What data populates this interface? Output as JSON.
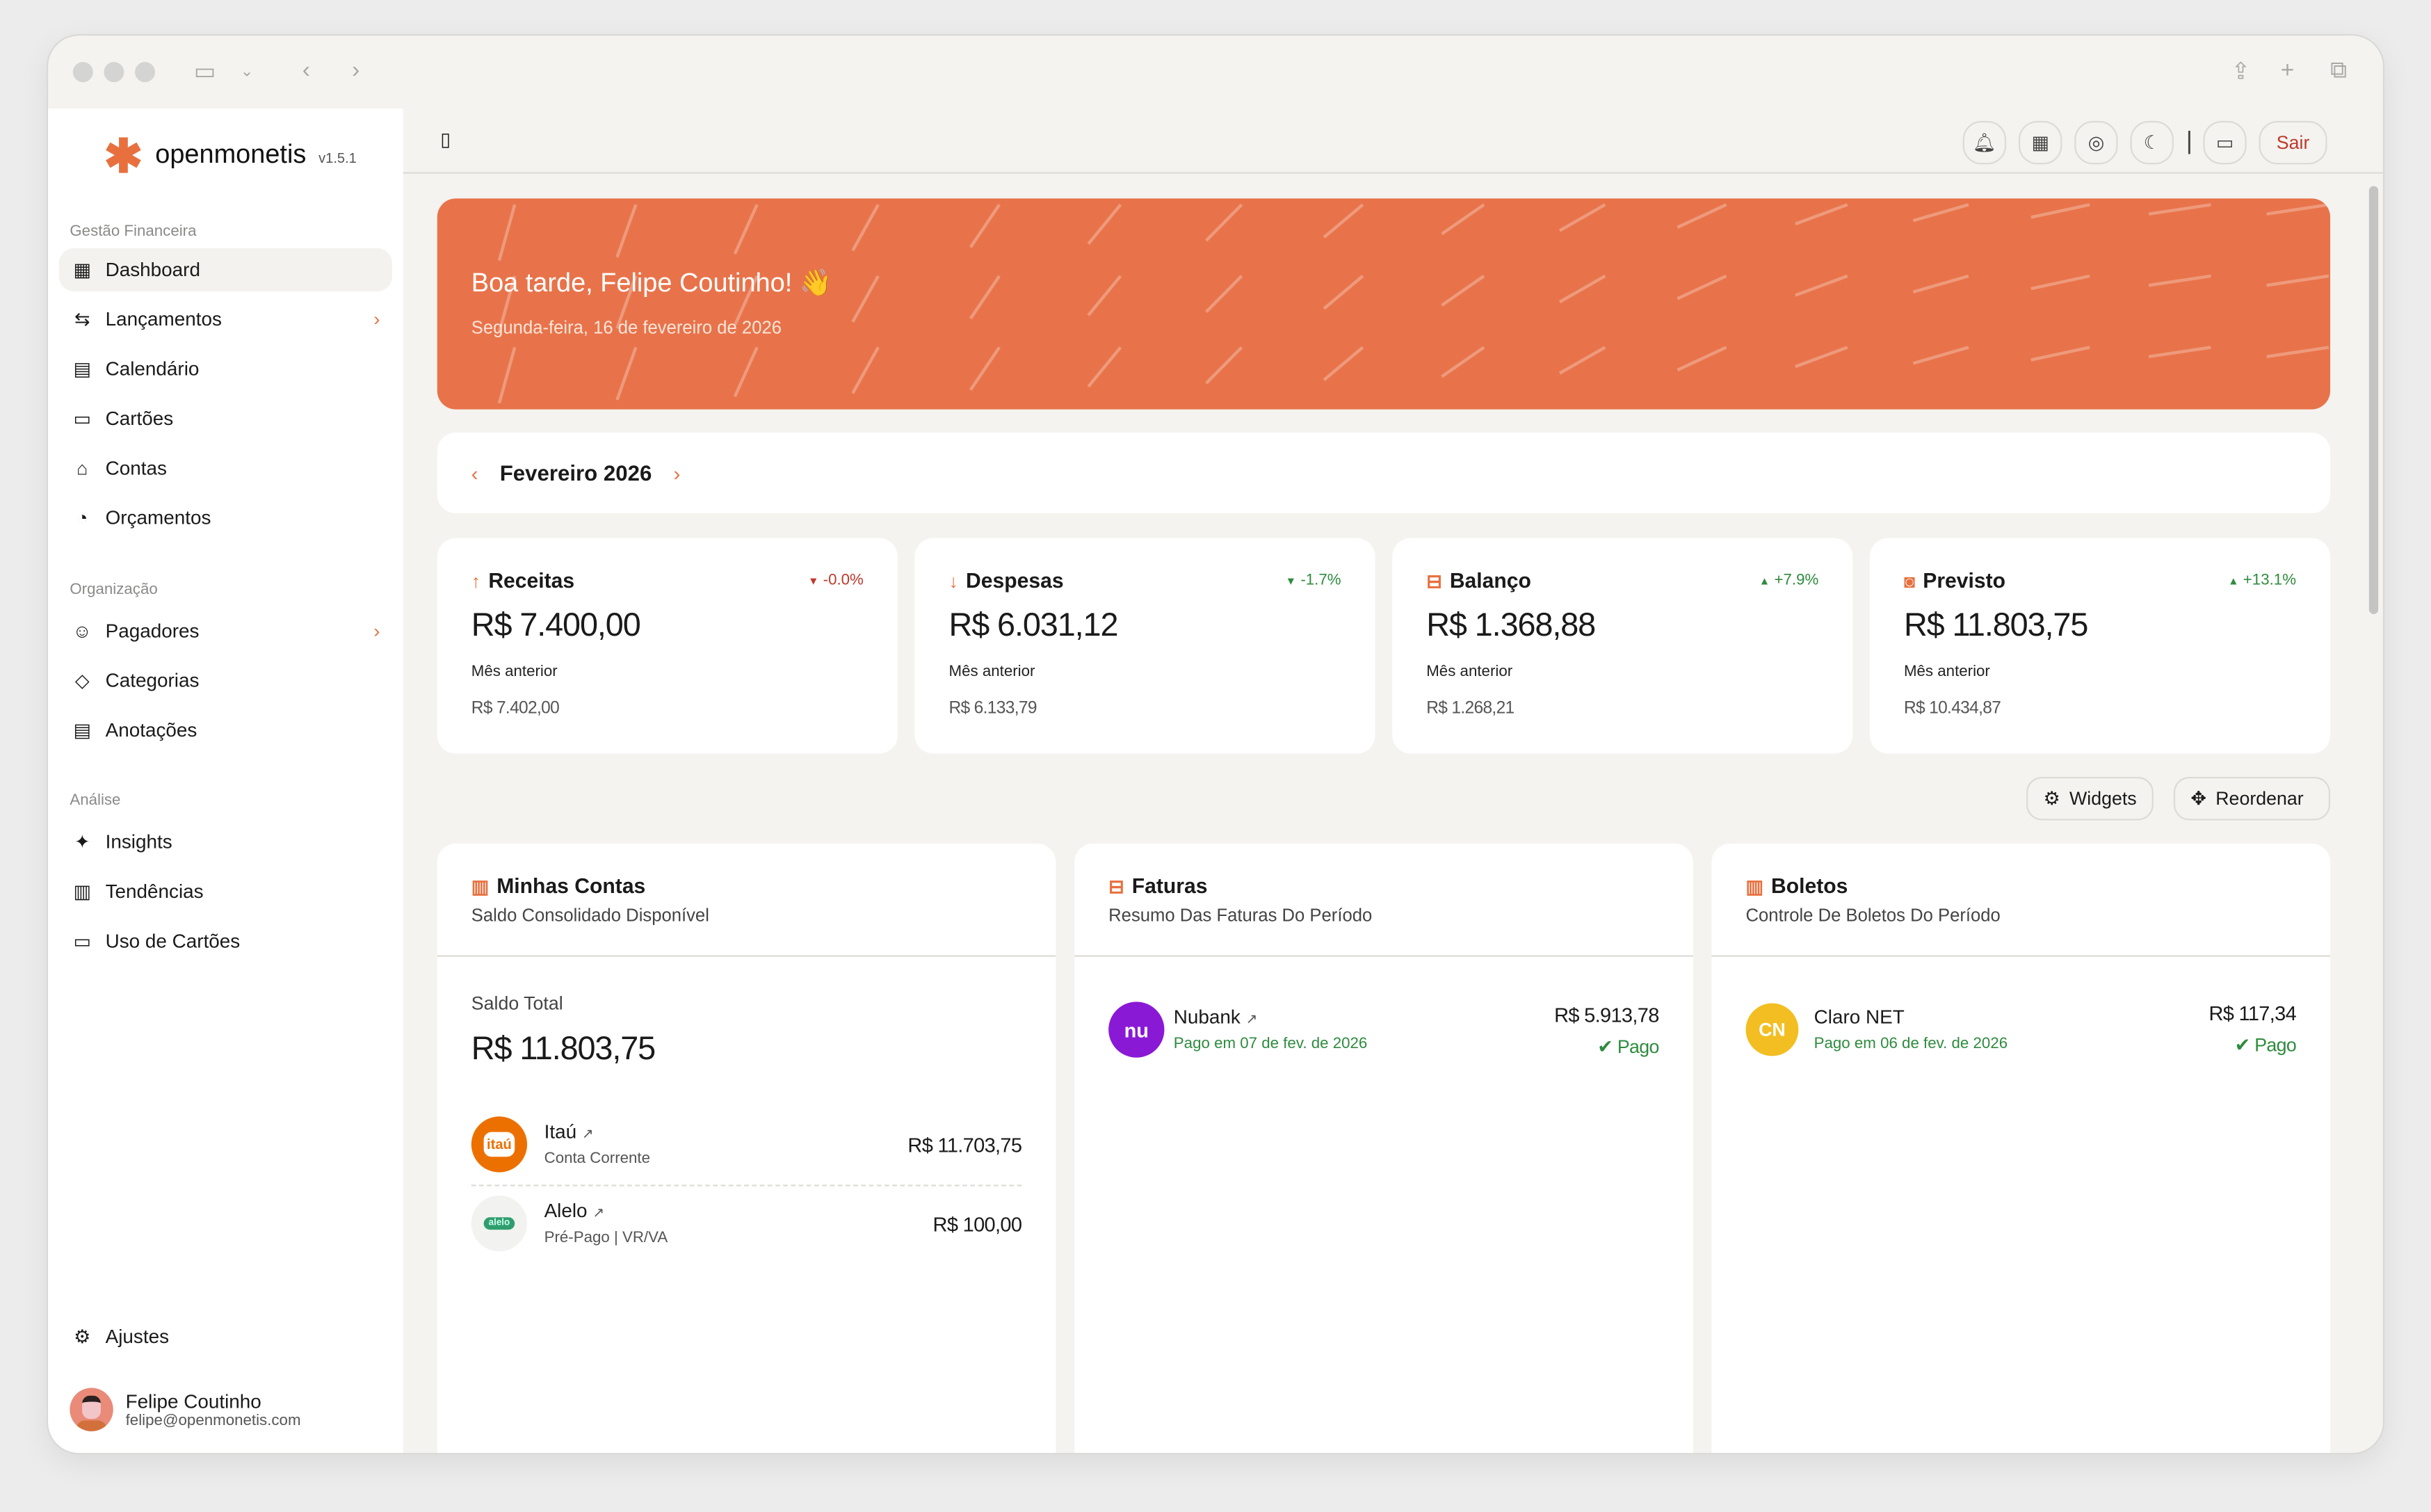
{
  "app": {
    "name": "openmonetis",
    "version": "v1.5.1"
  },
  "sidebar": {
    "sections": [
      {
        "label": "Gestão Financeira",
        "items": [
          {
            "label": "Dashboard",
            "icon": "dashboard-icon",
            "active": true
          },
          {
            "label": "Lançamentos",
            "icon": "transfer-icon",
            "chevron": true
          },
          {
            "label": "Calendário",
            "icon": "calendar-icon"
          },
          {
            "label": "Cartões",
            "icon": "card-icon"
          },
          {
            "label": "Contas",
            "icon": "bank-icon"
          },
          {
            "label": "Orçamentos",
            "icon": "budget-icon"
          }
        ]
      },
      {
        "label": "Organização",
        "items": [
          {
            "label": "Pagadores",
            "icon": "user-icon",
            "chevron": true
          },
          {
            "label": "Categorias",
            "icon": "tag-icon"
          },
          {
            "label": "Anotações",
            "icon": "notes-icon"
          }
        ]
      },
      {
        "label": "Análise",
        "items": [
          {
            "label": "Insights",
            "icon": "sparkle-icon"
          },
          {
            "label": "Tendências",
            "icon": "chart-icon"
          },
          {
            "label": "Uso de Cartões",
            "icon": "card-icon"
          }
        ]
      }
    ],
    "settings": "Ajustes",
    "user": {
      "name": "Felipe Coutinho",
      "email": "felipe@openmonetis.com"
    }
  },
  "topbar": {
    "logout": "Sair",
    "icons": [
      "bell-icon",
      "calculator-icon",
      "eye-icon",
      "moon-icon",
      "feedback-icon"
    ]
  },
  "banner": {
    "greeting": "Boa tarde, Felipe Coutinho! 👋",
    "date": "Segunda-feira, 16 de fevereiro de 2026",
    "color": "#e8734a"
  },
  "month": {
    "label": "Fevereiro 2026"
  },
  "stats": [
    {
      "title": "Receitas",
      "icon": "↑",
      "value": "R$ 7.400,00",
      "change": "-0.0%",
      "dir": "down",
      "tone": "red",
      "prev_label": "Mês anterior",
      "prev": "R$ 7.402,00"
    },
    {
      "title": "Despesas",
      "icon": "↓",
      "value": "R$ 6.031,12",
      "change": "-1.7%",
      "dir": "down",
      "tone": "green",
      "prev_label": "Mês anterior",
      "prev": "R$ 6.133,79"
    },
    {
      "title": "Balanço",
      "icon": "⊟",
      "value": "R$ 1.368,88",
      "change": "+7.9%",
      "dir": "up",
      "tone": "green",
      "prev_label": "Mês anterior",
      "prev": "R$ 1.268,21"
    },
    {
      "title": "Previsto",
      "icon": "◙",
      "value": "R$ 11.803,75",
      "change": "+13.1%",
      "dir": "up",
      "tone": "green",
      "prev_label": "Mês anterior",
      "prev": "R$ 10.434,87"
    }
  ],
  "actions": {
    "widgets": "Widgets",
    "reorder": "Reordenar"
  },
  "widgets": {
    "accounts": {
      "title": "Minhas Contas",
      "subtitle": "Saldo Consolidado Disponível",
      "total_label": "Saldo Total",
      "total": "R$ 11.803,75",
      "items": [
        {
          "name": "Itaú",
          "type": "Conta Corrente",
          "amount": "R$ 11.703,75",
          "logo": "itaú"
        },
        {
          "name": "Alelo",
          "type": "Pré-Pago | VR/VA",
          "amount": "R$ 100,00",
          "logo": "alelo"
        }
      ]
    },
    "invoices": {
      "title": "Faturas",
      "subtitle": "Resumo Das Faturas Do Período",
      "items": [
        {
          "name": "Nubank",
          "logo": "nu",
          "date": "Pago em 07 de fev. de 2026",
          "amount": "R$ 5.913,78",
          "status": "Pago"
        }
      ]
    },
    "bills": {
      "title": "Boletos",
      "subtitle": "Controle De Boletos Do Período",
      "items": [
        {
          "name": "Claro NET",
          "logo": "CN",
          "date": "Pago em 06 de fev. de 2026",
          "amount": "R$ 117,34",
          "status": "Pago"
        }
      ]
    }
  }
}
